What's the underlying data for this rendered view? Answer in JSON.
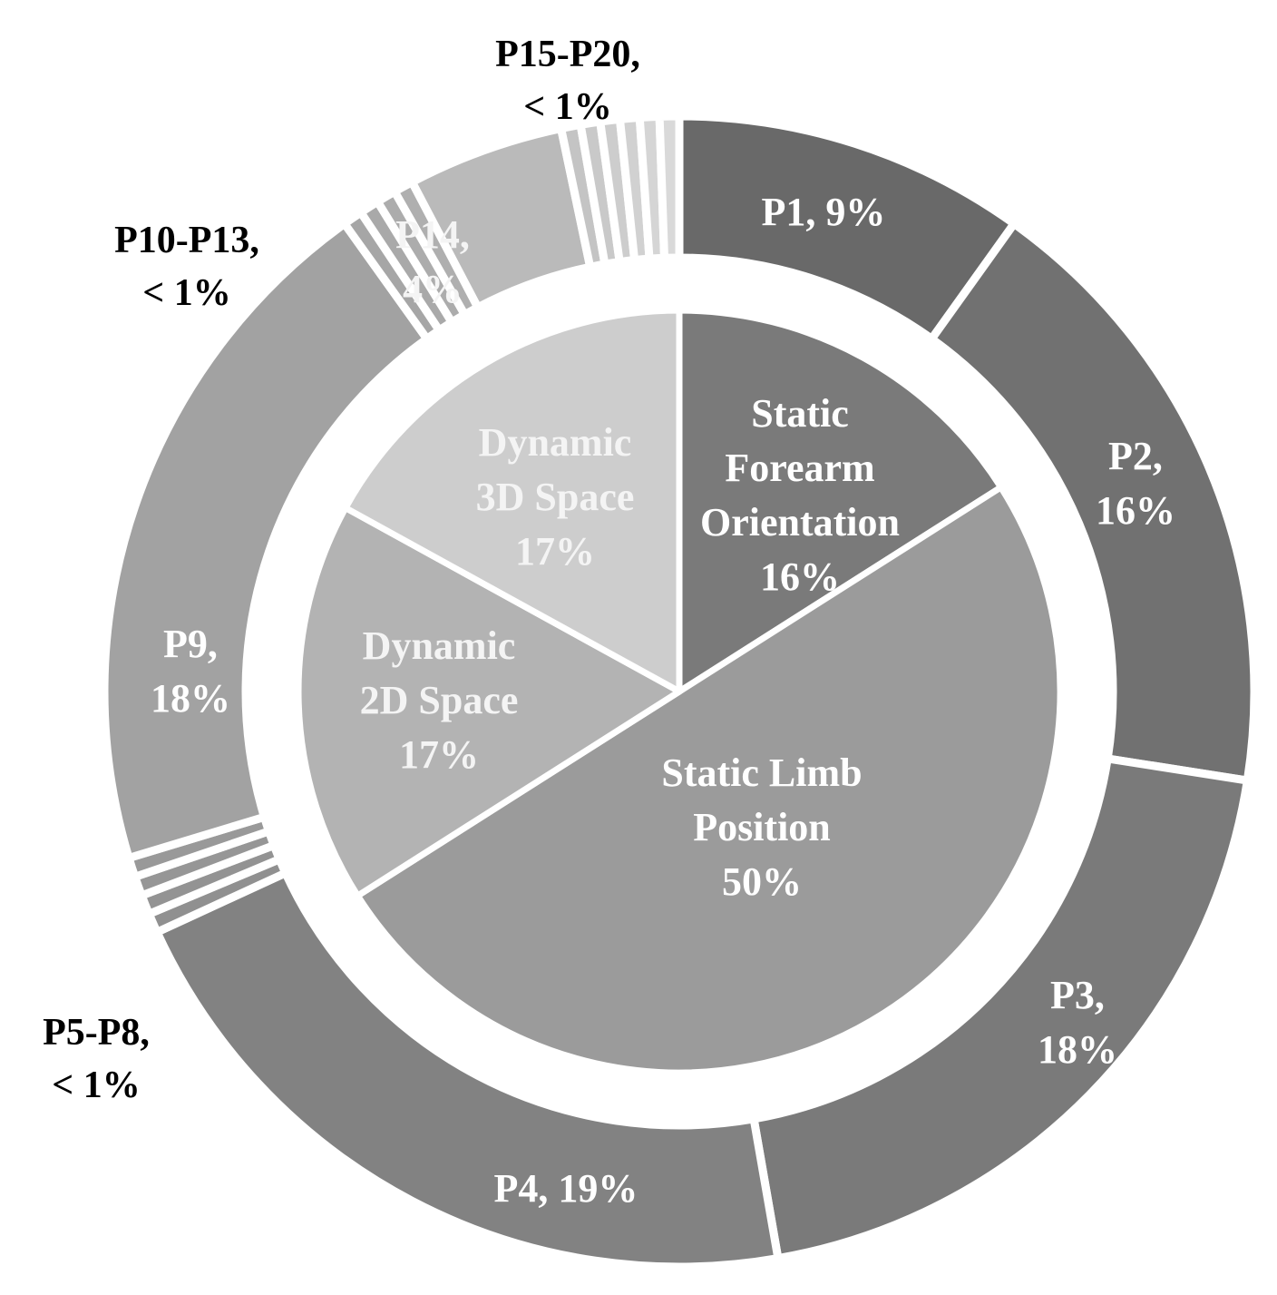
{
  "chart_data": {
    "type": "pie",
    "subtype": "nested-donut",
    "inner": {
      "slices": [
        {
          "label_lines": [
            "Static",
            "Forearm",
            "Orientation",
            "16%"
          ],
          "value": 16,
          "color": "#7a7a7a",
          "text_color": "#ffffff"
        },
        {
          "label_lines": [
            "Static Limb",
            "Position",
            "50%"
          ],
          "value": 50,
          "color": "#9b9b9b",
          "text_color": "#ffffff"
        },
        {
          "label_lines": [
            "Dynamic",
            "2D Space",
            "17%"
          ],
          "value": 17,
          "color": "#b3b3b3",
          "text_color": "#f4f4f4"
        },
        {
          "label_lines": [
            "Dynamic",
            "3D Space",
            "17%"
          ],
          "value": 17,
          "color": "#cdcdcd",
          "text_color": "#f4f4f4"
        }
      ]
    },
    "outer": {
      "slices": [
        {
          "name": "P1",
          "label_lines": [
            "P1, 9%"
          ],
          "value": 9,
          "color": "#696969",
          "text_color": "#ffffff"
        },
        {
          "name": "P2",
          "label_lines": [
            "P2,",
            "16%"
          ],
          "value": 16,
          "color": "#717171",
          "text_color": "#ffffff"
        },
        {
          "name": "P3",
          "label_lines": [
            "P3,",
            "18%"
          ],
          "value": 18,
          "color": "#7a7a7a",
          "text_color": "#ffffff"
        },
        {
          "name": "P4",
          "label_lines": [
            "P4, 19%"
          ],
          "value": 19,
          "color": "#828282",
          "text_color": "#ffffff"
        },
        {
          "name": "P5",
          "label_lines": [],
          "value": 0.5,
          "color": "#909090"
        },
        {
          "name": "P6",
          "label_lines": [],
          "value": 0.5,
          "color": "#939393"
        },
        {
          "name": "P7",
          "label_lines": [],
          "value": 0.5,
          "color": "#969696"
        },
        {
          "name": "P8",
          "label_lines": [],
          "value": 0.5,
          "color": "#999999"
        },
        {
          "name": "P9",
          "label_lines": [
            "P9,",
            "18%"
          ],
          "value": 18,
          "color": "#a2a2a2",
          "text_color": "#ffffff"
        },
        {
          "name": "P10",
          "label_lines": [],
          "value": 0.5,
          "color": "#a6a6a6"
        },
        {
          "name": "P11",
          "label_lines": [],
          "value": 0.5,
          "color": "#a9a9a9"
        },
        {
          "name": "P12",
          "label_lines": [],
          "value": 0.5,
          "color": "#acacac"
        },
        {
          "name": "P13",
          "label_lines": [],
          "value": 0.5,
          "color": "#afafaf"
        },
        {
          "name": "P14",
          "label_lines": [
            "P14,",
            "4%"
          ],
          "value": 4,
          "color": "#bababa",
          "text_color": "#f4f4f4"
        },
        {
          "name": "P15",
          "label_lines": [],
          "value": 0.5,
          "color": "#c4c4c4"
        },
        {
          "name": "P16",
          "label_lines": [],
          "value": 0.5,
          "color": "#c9c9c9"
        },
        {
          "name": "P17",
          "label_lines": [],
          "value": 0.5,
          "color": "#cdcdcd"
        },
        {
          "name": "P18",
          "label_lines": [],
          "value": 0.5,
          "color": "#d1d1d1"
        },
        {
          "name": "P19",
          "label_lines": [],
          "value": 0.5,
          "color": "#d5d5d5"
        },
        {
          "name": "P20",
          "label_lines": [],
          "value": 0.5,
          "color": "#d9d9d9"
        }
      ]
    },
    "group_labels": [
      {
        "label_lines": [
          "P15-P20,",
          "< 1%"
        ],
        "group": "P15-P20"
      },
      {
        "label_lines": [
          "P10-P13,",
          "< 1%"
        ],
        "group": "P10-P13"
      },
      {
        "label_lines": [
          "P5-P8,",
          "< 1%"
        ],
        "group": "P5-P8"
      }
    ]
  }
}
